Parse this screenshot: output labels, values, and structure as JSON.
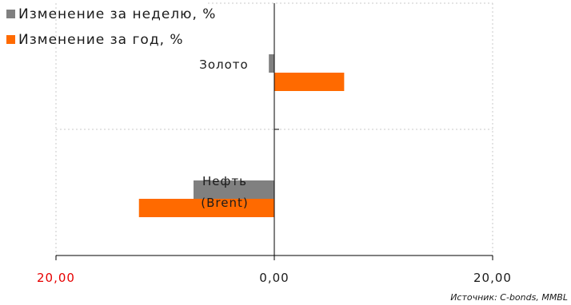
{
  "colors": {
    "week": "#808080",
    "year": "#ff6a00",
    "negative_tick": "#e60000",
    "text": "#1a1a1a",
    "grid": "#c8c8c8",
    "axis": "#000000"
  },
  "source_note": "Источник: C-bonds, MMBL",
  "chart_data": {
    "type": "bar",
    "orientation": "horizontal",
    "categories": [
      "Золото",
      "Нефть (Brent)"
    ],
    "category_label_lines": [
      [
        "Золото"
      ],
      [
        "Нефть",
        "(Brent)"
      ]
    ],
    "series": [
      {
        "name": "Изменение за неделю, %",
        "values": [
          -0.5,
          -7.4
        ]
      },
      {
        "name": "Изменение за год, %",
        "values": [
          6.4,
          -12.4
        ]
      }
    ],
    "xlim": [
      -20,
      20
    ],
    "ticks": [
      -20,
      0,
      20
    ],
    "tick_labels": [
      "20,00",
      "0,00",
      "20,00"
    ],
    "grid": true,
    "legend_position": "top-left"
  }
}
